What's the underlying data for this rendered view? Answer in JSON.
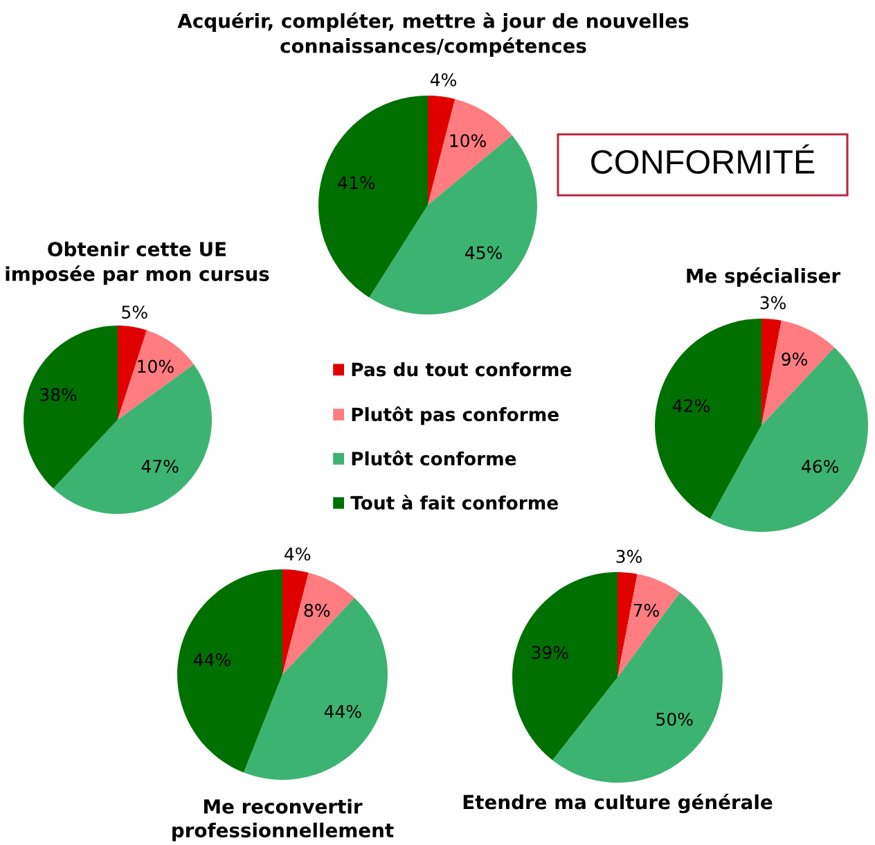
{
  "chart_data": [
    {
      "type": "pie",
      "title": "Acquérir, compléter, mettre à jour de nouvelles\nconnaissances/compétences",
      "categories": [
        "Pas du tout conforme",
        "Plutôt pas conforme",
        "Plutôt conforme",
        "Tout à fait conforme"
      ],
      "values": [
        4,
        10,
        45,
        41
      ],
      "colors": [
        "#e00000",
        "#ff7c80",
        "#3cb371",
        "#007000"
      ],
      "value_labels": [
        "4%",
        "10%",
        "45%",
        "41%"
      ],
      "legend": "bottom"
    },
    {
      "type": "other",
      "annotations": [
        "CONFORMITÉ"
      ]
    },
    {
      "type": "pie",
      "title": "Obtenir cette UE\nimposée par mon cursus",
      "categories": [
        null,
        null,
        null,
        null
      ],
      "values": [
        5,
        10,
        47,
        38
      ],
      "colors": [
        "#e00000",
        "#ff7c80",
        "#3cb371",
        "#007000"
      ],
      "value_labels": [
        "5%",
        "10%",
        "47%",
        "38%"
      ]
    },
    {
      "type": "pie",
      "title": "Me spécialiser",
      "categories": [
        null,
        null,
        null,
        null
      ],
      "values": [
        3,
        9,
        46,
        42
      ],
      "colors": [
        "#e00000",
        "#ff7c80",
        "#3cb371",
        "#007000"
      ],
      "value_labels": [
        "3%",
        "9%",
        "46%",
        "42%"
      ]
    },
    {
      "type": "pie",
      "title": "Me reconvertir\nprofessionnellement",
      "categories": [
        null,
        null,
        null,
        null
      ],
      "values": [
        4,
        8,
        44,
        44
      ],
      "colors": [
        "#e00000",
        "#ff7c80",
        "#3cb371",
        "#007000"
      ],
      "value_labels": [
        "4%",
        "8%",
        "44%",
        "44%"
      ]
    },
    {
      "type": "pie",
      "title": "Etendre ma culture générale",
      "categories": [
        null,
        null,
        null,
        null
      ],
      "values": [
        3,
        7,
        50,
        39
      ],
      "colors": [
        "#e00000",
        "#ff7c80",
        "#3cb371",
        "#007000"
      ],
      "value_labels": [
        "3%",
        "7%",
        "50%",
        "39%"
      ]
    }
  ]
}
